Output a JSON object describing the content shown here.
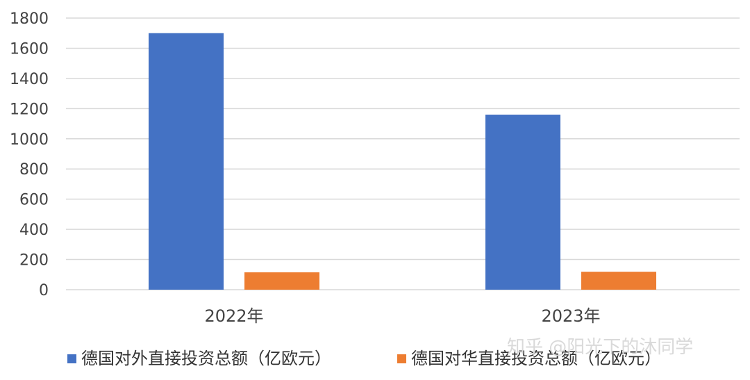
{
  "chart_data": {
    "type": "bar",
    "categories": [
      "2022年",
      "2023年"
    ],
    "series": [
      {
        "name": "德国对外直接投资总额（亿欧元）",
        "values": [
          1700,
          1160
        ],
        "color": "#4472C4"
      },
      {
        "name": "德国对华直接投资总额（亿欧元）",
        "values": [
          115,
          119
        ],
        "color": "#ED7D31"
      }
    ],
    "yticks": [
      0,
      200,
      400,
      600,
      800,
      1000,
      1200,
      1400,
      1600,
      1800
    ],
    "ylim": [
      0,
      1800
    ],
    "grid": true,
    "legend_position": "bottom",
    "title": "",
    "xlabel": "",
    "ylabel": ""
  },
  "watermark": "知乎 @阳光下的沐同学"
}
